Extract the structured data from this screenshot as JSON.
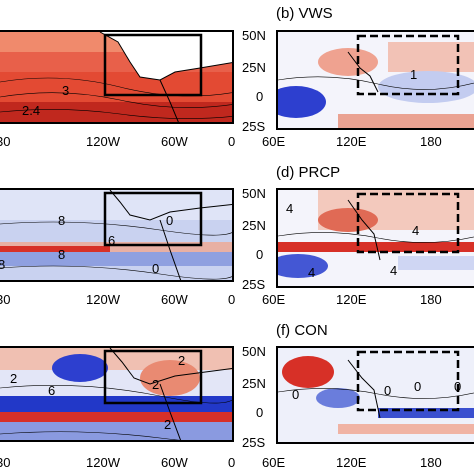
{
  "panels": {
    "b": {
      "title": "(b) VWS",
      "contour_labels": [
        "1"
      ]
    },
    "d": {
      "title": "(d) PRCP",
      "contour_labels": [
        "4",
        "4",
        "4",
        "4"
      ]
    },
    "f": {
      "title": "(f) CON",
      "contour_labels": [
        "0",
        "0",
        "0",
        "0"
      ]
    },
    "a": {
      "contour_labels": [
        "3",
        "2.4"
      ]
    },
    "c": {
      "contour_labels": [
        "8",
        "8",
        "6",
        "0",
        "0",
        "8"
      ]
    },
    "e": {
      "contour_labels": [
        "2",
        "6",
        "2",
        "2",
        "2"
      ]
    }
  },
  "left_x_ticks": [
    "30",
    "120W",
    "60W",
    "0"
  ],
  "right_x_ticks": [
    "60E",
    "120E",
    "180"
  ],
  "right_y_ticks": [
    "50N",
    "25N",
    "0",
    "25S"
  ],
  "colors": {
    "warm": "#d73027",
    "cool": "#3a4fcf",
    "border": "#000000"
  }
}
